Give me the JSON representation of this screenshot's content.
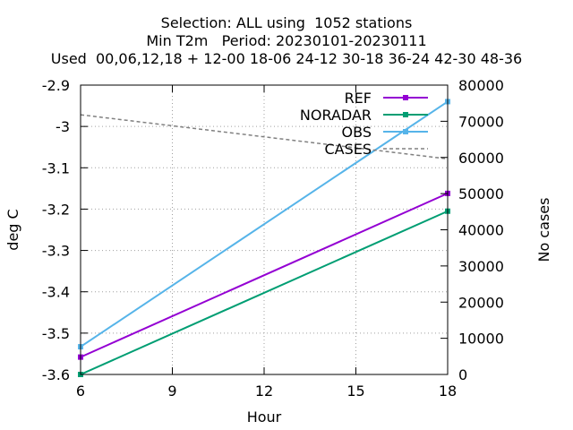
{
  "chart_data": {
    "type": "line",
    "title_lines": [
      "Selection: ALL using  1052 stations",
      "Min T2m   Period: 20230101-20230111",
      "Used  00,06,12,18 + 12-00 18-06 24-12 30-18 36-24 42-30 48-36"
    ],
    "xlabel": "Hour",
    "ylabel": "deg C",
    "y2label": "No cases",
    "x_ticks": [
      6,
      9,
      12,
      15,
      18
    ],
    "xlim": [
      6,
      18
    ],
    "y_ticks": [
      -3.6,
      -3.5,
      -3.4,
      -3.3,
      -3.2,
      -3.1,
      -3.0,
      -2.9
    ],
    "y_tick_labels": [
      "-3.6",
      "-3.5",
      "-3.4",
      "-3.3",
      "-3.2",
      "-3.1",
      "-3",
      "-2.9"
    ],
    "ylim": [
      -3.6,
      -2.9
    ],
    "y2_ticks": [
      0,
      10000,
      20000,
      30000,
      40000,
      50000,
      60000,
      70000,
      80000
    ],
    "y2_tick_labels": [
      "0",
      "10000",
      "20000",
      "30000",
      "40000",
      "50000",
      "60000",
      "70000",
      "80000"
    ],
    "y2lim": [
      0,
      80000
    ],
    "grid": true,
    "legend_position": "top-right",
    "series": [
      {
        "name": "REF",
        "color": "#9400d3",
        "axis": "y1",
        "marker": true,
        "x": [
          6,
          18
        ],
        "values": [
          -3.558,
          -3.162
        ]
      },
      {
        "name": "NORADAR",
        "color": "#009e73",
        "axis": "y1",
        "marker": true,
        "x": [
          6,
          18
        ],
        "values": [
          -3.6,
          -3.205
        ]
      },
      {
        "name": "OBS",
        "color": "#56b4e9",
        "axis": "y1",
        "marker": true,
        "x": [
          6,
          18
        ],
        "values": [
          -3.533,
          -2.94
        ]
      },
      {
        "name": "CASES",
        "color": "#808080",
        "axis": "y2",
        "marker": false,
        "dashed": true,
        "x": [
          6,
          18
        ],
        "values": [
          71800,
          59600
        ]
      }
    ]
  }
}
